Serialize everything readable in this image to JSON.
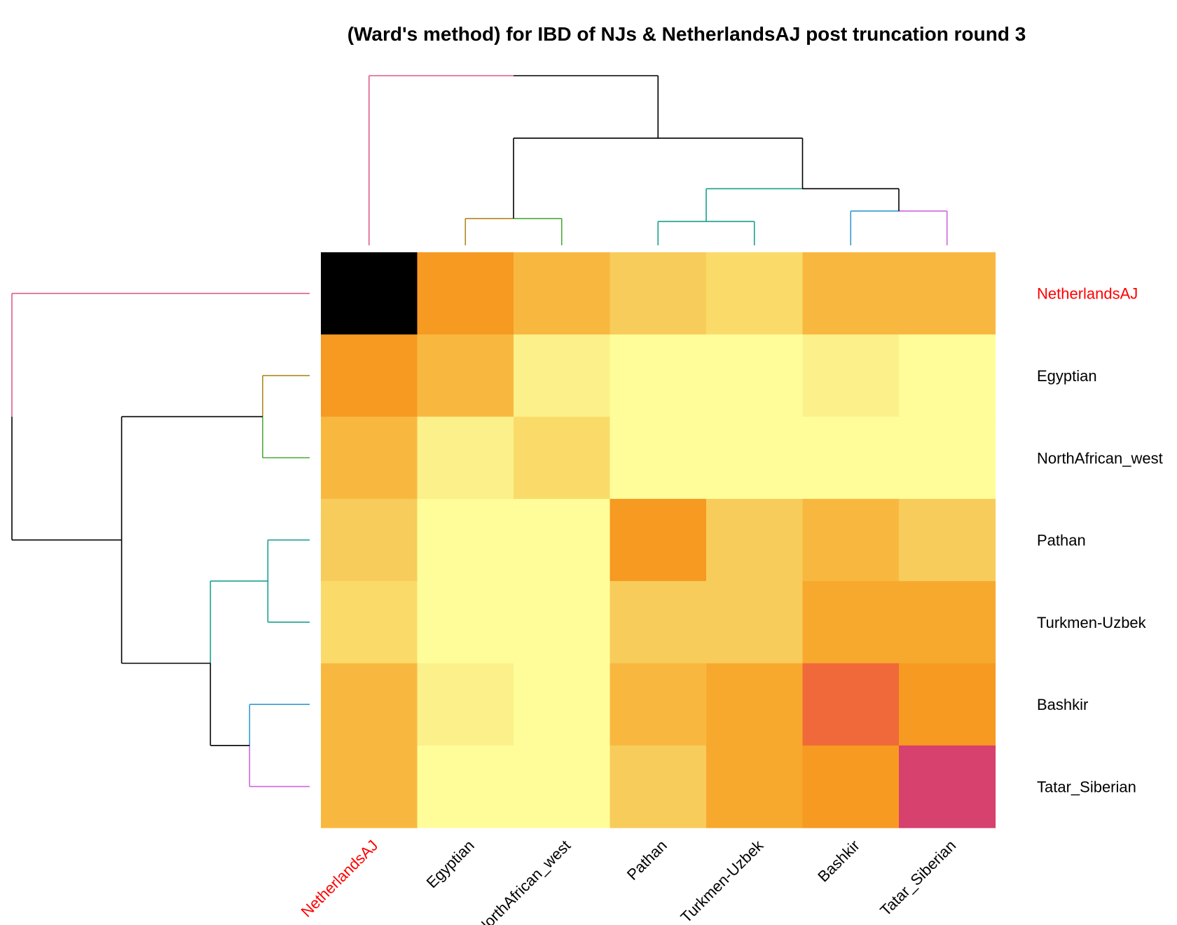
{
  "chart_data": {
    "type": "heatmap",
    "title": "(Ward's method) for IBD of NJs & NetherlandsAJ post truncation round 3",
    "labels": [
      "NetherlandsAJ",
      "Egyptian",
      "NorthAfrican_west",
      "Pathan",
      "Turkmen-Uzbek",
      "Bashkir",
      "Tatar_Siberian"
    ],
    "highlight_label": "NetherlandsAJ",
    "highlight_color": "#ff0000",
    "label_color": "#000000",
    "color_scale": [
      "#fffd9a",
      "#fcf08a",
      "#fadb6a",
      "#f8cc5a",
      "#f8b840",
      "#f7a92e",
      "#f69a22",
      "#f0693a",
      "#d6416e",
      "#000000"
    ],
    "color_scale_description": "light yellow (low) to dark (high)",
    "values": [
      [
        9,
        6.3,
        4.3,
        3.0,
        2.2,
        4.3,
        4.3
      ],
      [
        6.3,
        4.3,
        1.0,
        0,
        0,
        1.0,
        0
      ],
      [
        4.3,
        1.0,
        2.0,
        0,
        0,
        0,
        0
      ],
      [
        3.0,
        0,
        0,
        5.8,
        3.0,
        3.8,
        3.0
      ],
      [
        2.2,
        0,
        0,
        3.0,
        3.0,
        5.2,
        5.2
      ],
      [
        4.3,
        1.0,
        0,
        3.8,
        5.2,
        7.0,
        6.3
      ],
      [
        4.3,
        0,
        0,
        3.0,
        5.2,
        6.3,
        8.0
      ]
    ],
    "dendrogram": {
      "merges": [
        {
          "left": "Egyptian",
          "right": "NorthAfrican_west",
          "height": 0.9
        },
        {
          "left": "Pathan",
          "right": "Turkmen-Uzbek",
          "height": 0.8
        },
        {
          "left": "Bashkir",
          "right": "Tatar_Siberian",
          "height": 1.15
        },
        {
          "left": "Pathan+Turkmen-Uzbek",
          "right": "Bashkir+Tatar_Siberian",
          "height": 1.9
        },
        {
          "left": "Egyptian+NorthAfrican_west",
          "right": "Pathan+Turkmen-Uzbek+Bashkir+Tatar_Siberian",
          "height": 3.6
        },
        {
          "left": "NetherlandsAJ",
          "right": "Others",
          "height": 5.7
        }
      ],
      "branch_colors": {
        "NetherlandsAJ": "#e05a8c",
        "Egyptian": "#b08820",
        "NorthAfrican_west": "#4caa3a",
        "Pathan+Turkmen-Uzbek": "#1a9f8f",
        "Bashkir": "#3399cc",
        "Tatar_Siberian": "#cc66dd",
        "default": "#000000"
      }
    }
  }
}
